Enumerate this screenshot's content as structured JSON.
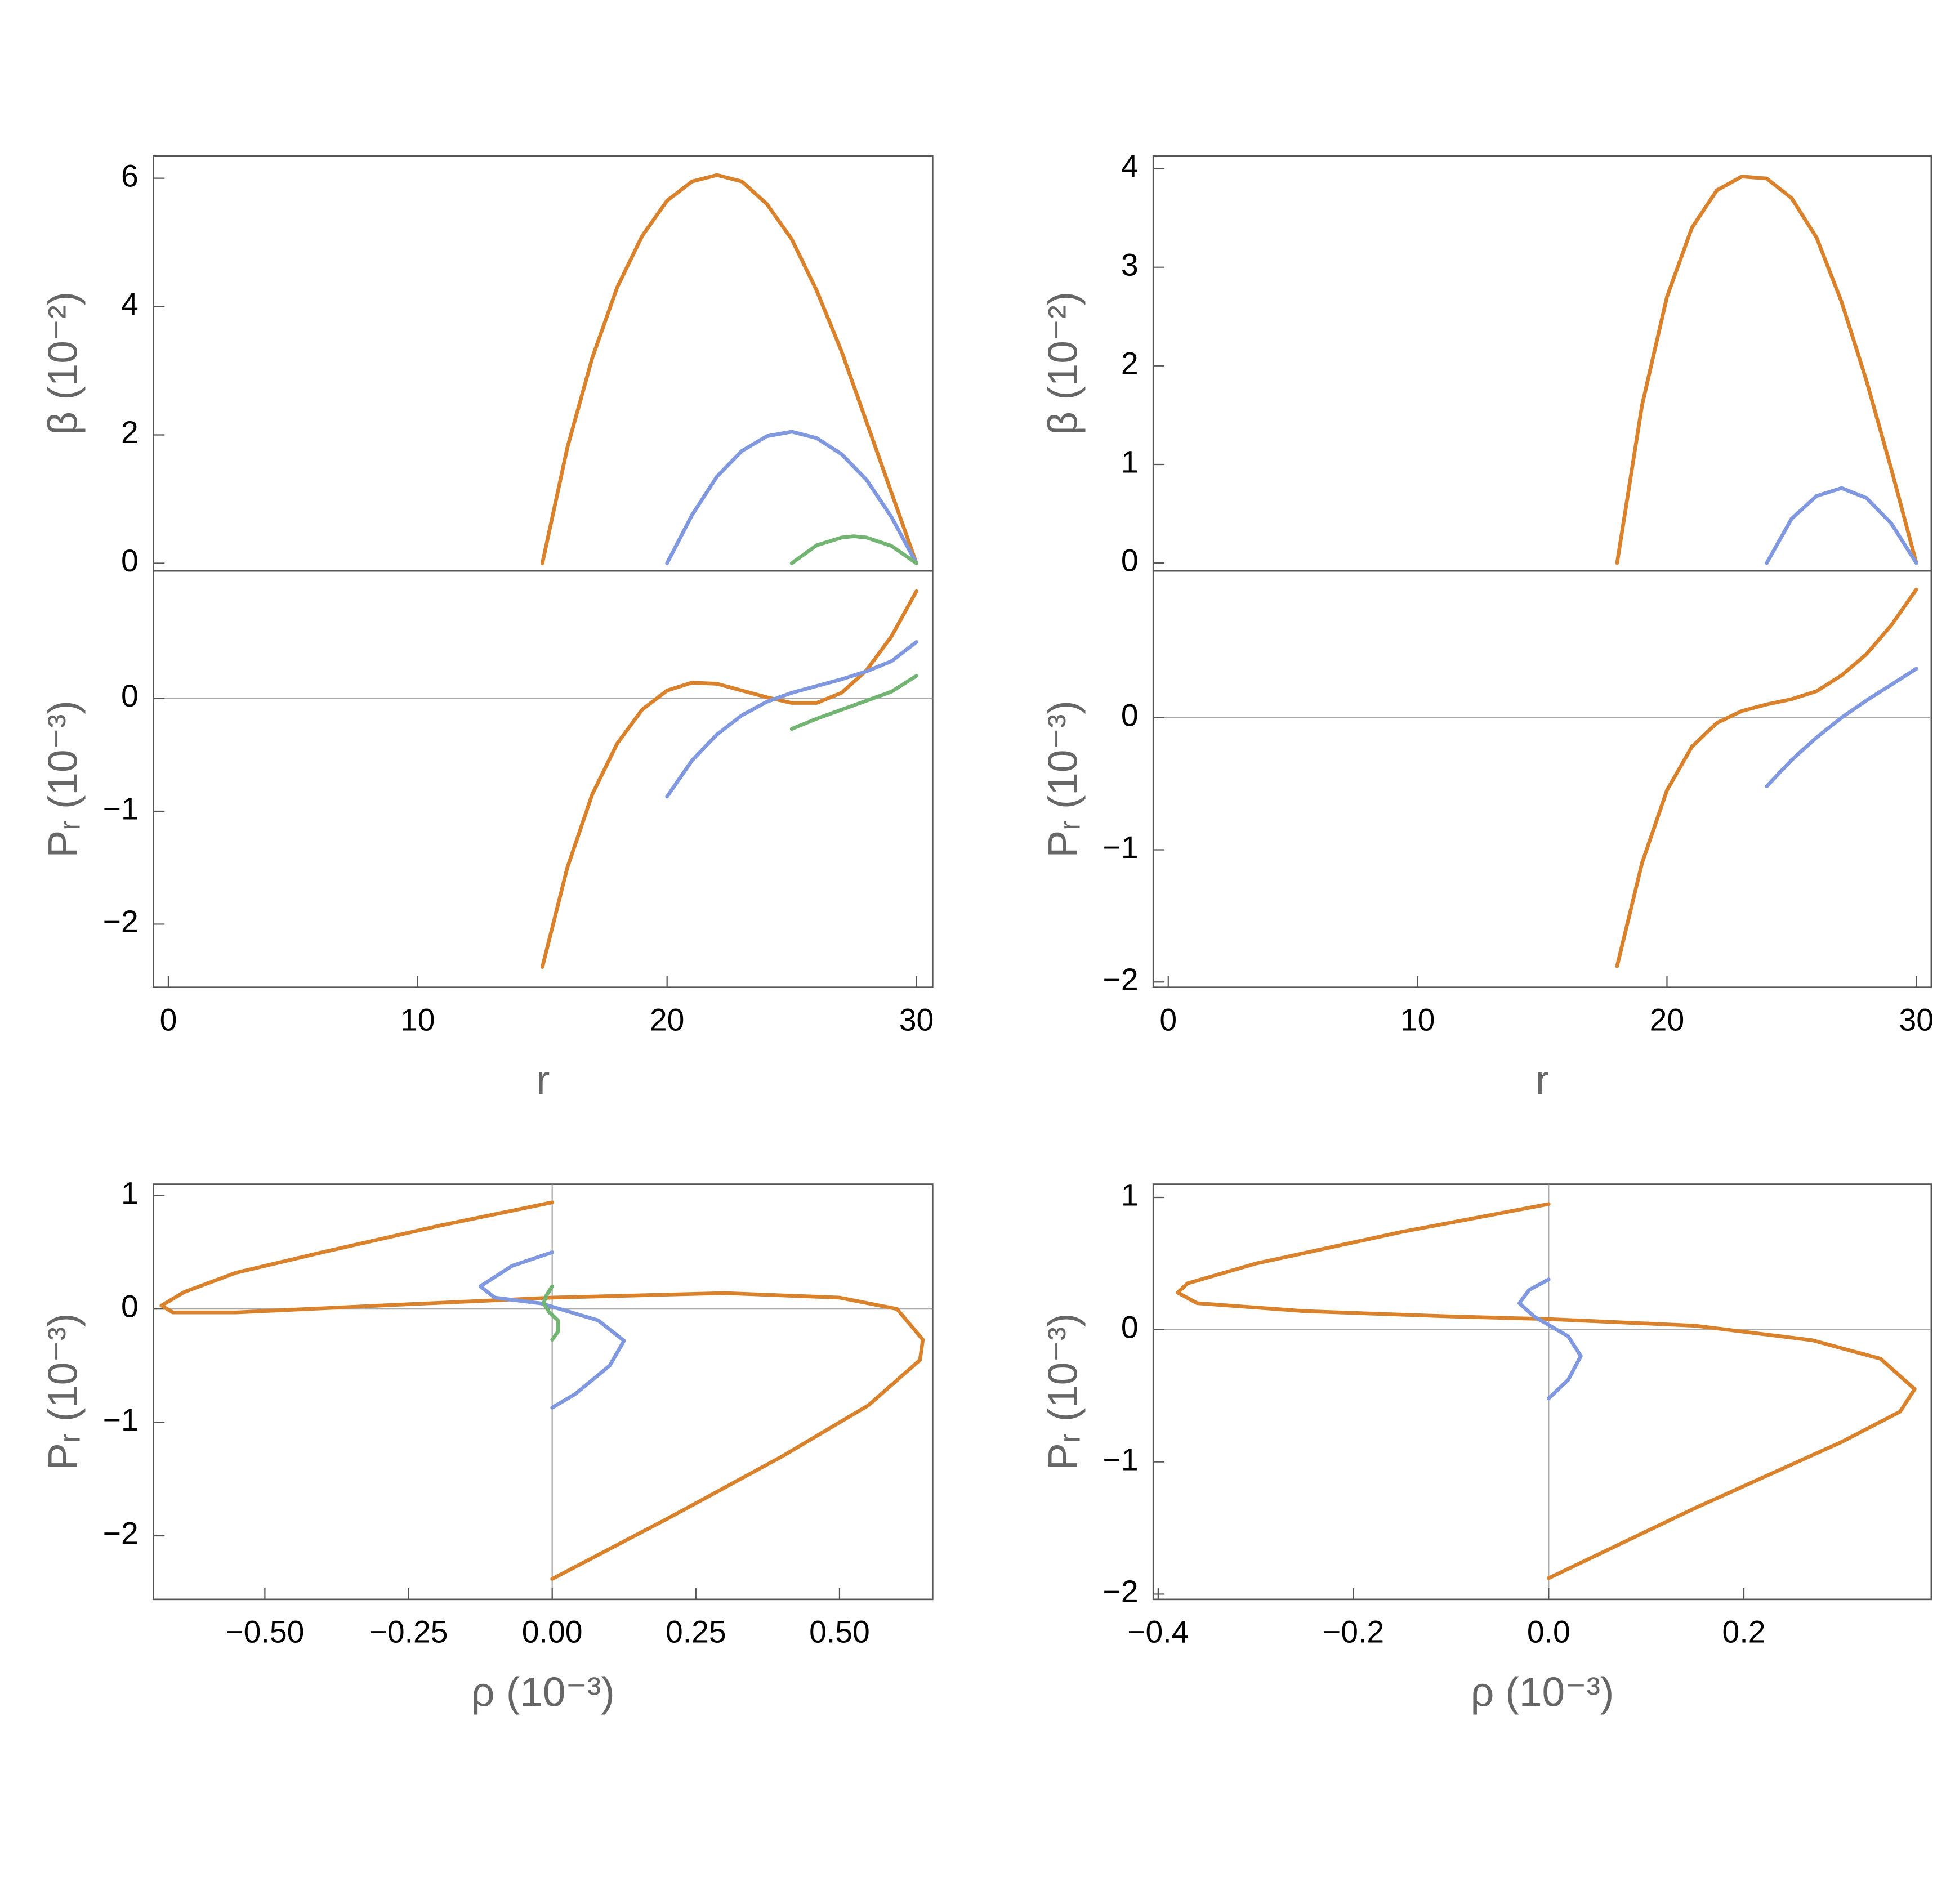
{
  "chart_data": [
    {
      "type": "line",
      "ylabel": "β (10⁻²)",
      "xlim": [
        -0.6,
        30.65
      ],
      "ylim": [
        -0.12,
        6.35
      ],
      "yticks": [
        0,
        2,
        4,
        6
      ],
      "series": [
        {
          "color": "#d9822b",
          "x": [
            15,
            16,
            17,
            18,
            19,
            20,
            21,
            22,
            23,
            24,
            25,
            26,
            27,
            28,
            29,
            30
          ],
          "values": [
            0,
            1.8,
            3.2,
            4.3,
            5.1,
            5.65,
            5.95,
            6.05,
            5.95,
            5.6,
            5.05,
            4.25,
            3.3,
            2.2,
            1.1,
            0
          ]
        },
        {
          "color": "#7f98df",
          "x": [
            20,
            21,
            22,
            23,
            24,
            25,
            26,
            27,
            28,
            29,
            30
          ],
          "values": [
            0,
            0.75,
            1.35,
            1.75,
            1.98,
            2.05,
            1.95,
            1.7,
            1.3,
            0.72,
            0
          ]
        },
        {
          "color": "#72b572",
          "x": [
            25,
            26,
            27,
            27.5,
            28,
            29,
            30
          ],
          "values": [
            0,
            0.28,
            0.4,
            0.42,
            0.4,
            0.27,
            0
          ]
        }
      ]
    },
    {
      "type": "line",
      "xlabel": "r",
      "ylabel": "Pᵣ (10⁻³)",
      "xlim": [
        -0.6,
        30.65
      ],
      "ylim": [
        -2.56,
        1.13
      ],
      "axes": "x",
      "xticks": [
        0,
        10,
        20,
        30
      ],
      "yticks": [
        {
          "value": -2,
          "label": "−2"
        },
        {
          "value": -1,
          "label": "−1"
        },
        0
      ],
      "series": [
        {
          "color": "#d9822b",
          "x": [
            15,
            16,
            17,
            18,
            19,
            20,
            21,
            22,
            23,
            24,
            25,
            26,
            27,
            28,
            29,
            30
          ],
          "values": [
            -2.38,
            -1.5,
            -0.85,
            -0.4,
            -0.1,
            0.07,
            0.14,
            0.13,
            0.07,
            0.01,
            -0.04,
            -0.04,
            0.05,
            0.25,
            0.55,
            0.95
          ]
        },
        {
          "color": "#7f98df",
          "x": [
            20,
            21,
            22,
            23,
            24,
            25,
            26,
            27,
            28,
            29,
            30
          ],
          "values": [
            -0.87,
            -0.55,
            -0.32,
            -0.15,
            -0.03,
            0.05,
            0.11,
            0.17,
            0.24,
            0.33,
            0.5
          ]
        },
        {
          "color": "#72b572",
          "x": [
            25,
            26,
            27,
            28,
            29,
            30
          ],
          "values": [
            -0.27,
            -0.18,
            -0.1,
            -0.02,
            0.06,
            0.2
          ]
        }
      ]
    },
    {
      "type": "line",
      "ylabel": "β (10⁻²)",
      "xlim": [
        -0.6,
        30.6
      ],
      "ylim": [
        -0.08,
        4.13
      ],
      "yticks": [
        0,
        1,
        2,
        3,
        4
      ],
      "series": [
        {
          "color": "#d9822b",
          "x": [
            18,
            19,
            20,
            21,
            22,
            23,
            24,
            25,
            26,
            27,
            28,
            29,
            30
          ],
          "values": [
            0,
            1.6,
            2.7,
            3.4,
            3.78,
            3.92,
            3.9,
            3.7,
            3.3,
            2.65,
            1.85,
            0.95,
            0
          ]
        },
        {
          "color": "#7f98df",
          "x": [
            24,
            25,
            26,
            27,
            28,
            29,
            30
          ],
          "values": [
            0,
            0.45,
            0.68,
            0.76,
            0.66,
            0.4,
            0
          ]
        }
      ]
    },
    {
      "type": "line",
      "xlabel": "r",
      "ylabel": "Pᵣ (10⁻³)",
      "xlim": [
        -0.6,
        30.6
      ],
      "ylim": [
        -2.04,
        1.11
      ],
      "axes": "x",
      "xticks": [
        0,
        10,
        20,
        30
      ],
      "yticks": [
        {
          "value": -2,
          "label": "−2"
        },
        {
          "value": -1,
          "label": "−1"
        },
        0
      ],
      "series": [
        {
          "color": "#d9822b",
          "x": [
            18,
            19,
            20,
            21,
            22,
            23,
            24,
            25,
            26,
            27,
            28,
            29,
            30
          ],
          "values": [
            -1.88,
            -1.1,
            -0.55,
            -0.22,
            -0.04,
            0.05,
            0.1,
            0.14,
            0.2,
            0.32,
            0.48,
            0.7,
            0.97
          ]
        },
        {
          "color": "#7f98df",
          "x": [
            24,
            25,
            26,
            27,
            28,
            29,
            30
          ],
          "values": [
            -0.52,
            -0.32,
            -0.15,
            0,
            0.13,
            0.25,
            0.37
          ]
        }
      ]
    },
    {
      "type": "line",
      "xlabel": "ρ (10⁻³)",
      "ylabel": "Pᵣ (10⁻³)",
      "xlim": [
        -0.694,
        0.662
      ],
      "ylim": [
        -2.56,
        1.1
      ],
      "axes": "xy",
      "xticks": [
        {
          "value": -0.5,
          "label": "−0.50"
        },
        {
          "value": -0.25,
          "label": "−0.25"
        },
        {
          "value": 0,
          "label": "0.00"
        },
        0.25,
        {
          "value": 0.5,
          "label": "0.50"
        }
      ],
      "yticks": [
        {
          "value": -2,
          "label": "−2"
        },
        {
          "value": -1,
          "label": "−1"
        },
        0,
        1
      ],
      "series": [
        {
          "color": "#d9822b",
          "x": [
            0,
            -0.2,
            -0.4,
            -0.55,
            -0.64,
            -0.68,
            -0.66,
            -0.55,
            -0.3,
            0,
            0.3,
            0.5,
            0.6,
            0.645,
            0.64,
            0.55,
            0.4,
            0.2,
            0
          ],
          "values": [
            0.94,
            0.73,
            0.5,
            0.32,
            0.15,
            0.03,
            -0.03,
            -0.03,
            0.03,
            0.1,
            0.14,
            0.1,
            0,
            -0.27,
            -0.45,
            -0.85,
            -1.3,
            -1.85,
            -2.38
          ]
        },
        {
          "color": "#7f98df",
          "x": [
            0,
            -0.07,
            -0.125,
            -0.1,
            -0.02,
            0.08,
            0.125,
            0.1,
            0.04,
            0
          ],
          "values": [
            0.5,
            0.38,
            0.2,
            0.1,
            0.05,
            -0.1,
            -0.28,
            -0.5,
            -0.75,
            -0.87
          ]
        },
        {
          "color": "#72b572",
          "x": [
            0,
            -0.01,
            -0.015,
            -0.005,
            0.01,
            0.01,
            0
          ],
          "values": [
            0.2,
            0.12,
            0.05,
            -0.03,
            -0.1,
            -0.2,
            -0.27
          ]
        }
      ]
    },
    {
      "type": "line",
      "xlabel": "ρ (10⁻³)",
      "ylabel": "Pᵣ (10⁻³)",
      "xlim": [
        -0.405,
        0.392
      ],
      "ylim": [
        -2.04,
        1.1
      ],
      "axes": "xy",
      "xticks": [
        {
          "value": -0.4,
          "label": "−0.4"
        },
        {
          "value": -0.2,
          "label": "−0.2"
        },
        {
          "value": 0,
          "label": "0.0"
        },
        0.2
      ],
      "yticks": [
        {
          "value": -2,
          "label": "−2"
        },
        {
          "value": -1,
          "label": "−1"
        },
        0,
        1
      ],
      "series": [
        {
          "color": "#d9822b",
          "x": [
            0,
            -0.15,
            -0.3,
            -0.37,
            -0.38,
            -0.36,
            -0.25,
            -0.1,
            0,
            0.15,
            0.27,
            0.34,
            0.375,
            0.36,
            0.3,
            0.15,
            0
          ],
          "values": [
            0.95,
            0.74,
            0.5,
            0.35,
            0.28,
            0.2,
            0.14,
            0.1,
            0.08,
            0.03,
            -0.08,
            -0.22,
            -0.45,
            -0.62,
            -0.85,
            -1.35,
            -1.88
          ]
        },
        {
          "color": "#7f98df",
          "x": [
            0,
            -0.02,
            -0.03,
            -0.015,
            0.02,
            0.033,
            0.02,
            0
          ],
          "values": [
            0.38,
            0.3,
            0.2,
            0.1,
            -0.05,
            -0.2,
            -0.38,
            -0.52
          ]
        }
      ]
    }
  ]
}
